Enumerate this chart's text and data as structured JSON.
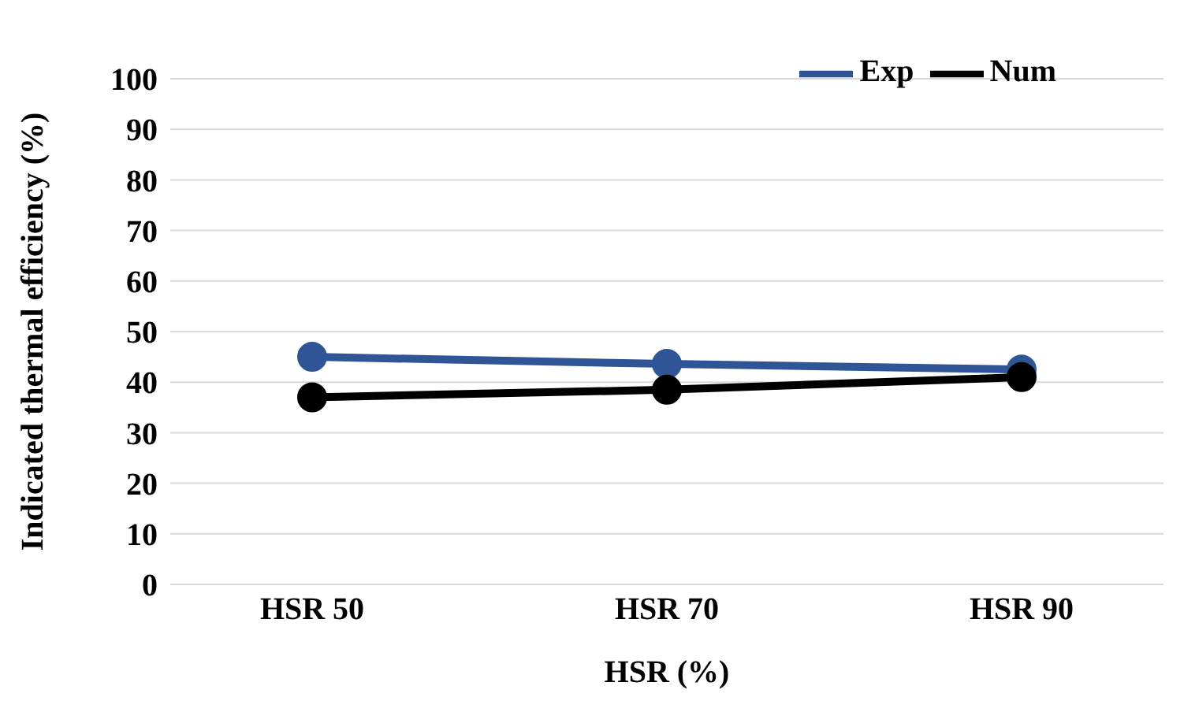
{
  "chart_data": {
    "type": "line",
    "xlabel": "HSR (%)",
    "ylabel": "Indicated thermal efficiency (%)",
    "categories": [
      "HSR 50",
      "HSR 70",
      "HSR 90"
    ],
    "series": [
      {
        "name": "Exp",
        "color": "#2f5597",
        "values": [
          45,
          43.6,
          42.5
        ]
      },
      {
        "name": "Num",
        "color": "#000000",
        "values": [
          37,
          38.5,
          41
        ]
      }
    ],
    "ylim": [
      0,
      100
    ],
    "yticks": [
      0,
      10,
      20,
      30,
      40,
      50,
      60,
      70,
      80,
      90,
      100
    ],
    "grid": "y",
    "legend": "top right",
    "marker": "circle",
    "line_style": "solid"
  }
}
